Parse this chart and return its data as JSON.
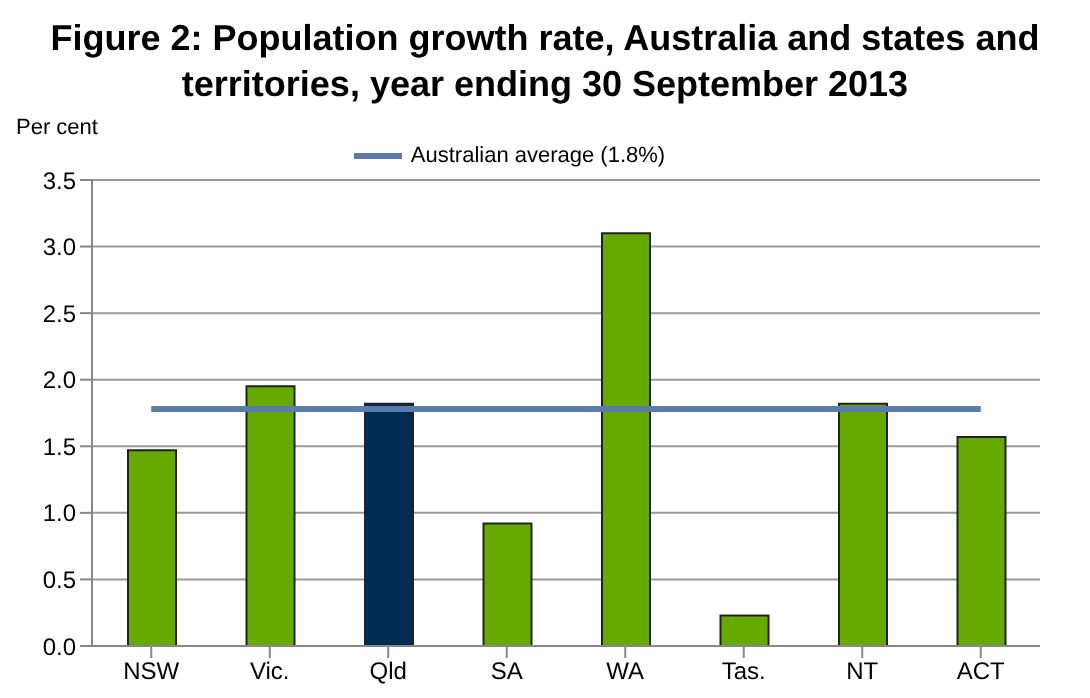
{
  "chart_data": {
    "type": "bar",
    "title": "Figure 2: Population growth rate, Australia and states and territories, year ending 30 September 2013",
    "ylabel": "Per cent",
    "categories": [
      "NSW",
      "Vic.",
      "Qld",
      "SA",
      "WA",
      "Tas.",
      "NT",
      "ACT"
    ],
    "series": [
      {
        "colors": [
          "#66aa00",
          "#66aa00",
          "#002b55",
          "#66aa00",
          "#66aa00",
          "#66aa00",
          "#66aa00",
          "#66aa00"
        ],
        "values": [
          1.47,
          1.95,
          1.82,
          0.92,
          3.1,
          0.23,
          1.82,
          1.57
        ]
      },
      {
        "type": "line",
        "name": "Australian average (1.8%)",
        "color": "#5a7cab",
        "values": [
          1.78,
          1.78,
          1.78,
          1.78,
          1.78,
          1.78,
          1.78,
          1.78
        ]
      }
    ],
    "ylim": [
      0,
      3.5
    ],
    "yticks": [
      {
        "value": 0,
        "label": "0.0"
      },
      0.5,
      {
        "value": 1,
        "label": "1.0"
      },
      1.5,
      {
        "value": 2,
        "label": "2.0"
      },
      2.5,
      {
        "value": 3,
        "label": "3.0"
      },
      3.5
    ],
    "grid": "y",
    "legend": "top",
    "marker": "none"
  }
}
